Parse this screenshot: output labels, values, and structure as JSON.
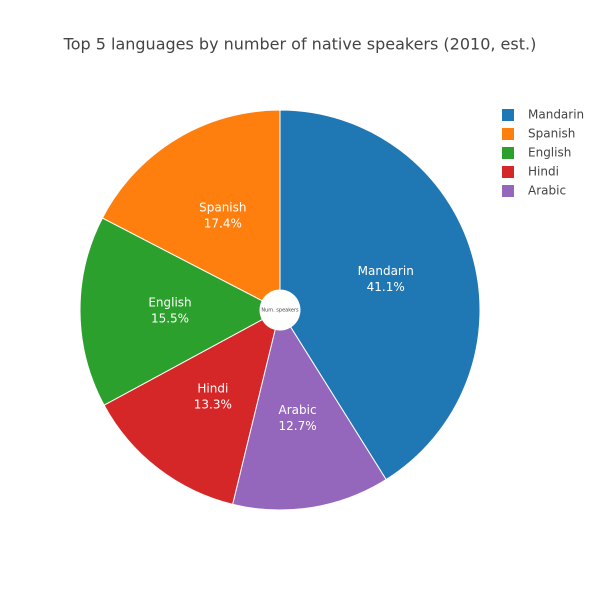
{
  "chart_data": {
    "type": "pie",
    "title": "Top 5 languages by number of native speakers (2010, est.)",
    "categories": [
      "Mandarin",
      "Spanish",
      "English",
      "Hindi",
      "Arabic"
    ],
    "values": [
      41.1,
      17.4,
      15.5,
      13.3,
      12.7
    ],
    "value_labels": [
      "41.1%",
      "17.4%",
      "15.5%",
      "13.3%",
      "12.7%"
    ],
    "colors": [
      "#1f77b4",
      "#ff7f0e",
      "#2ca02c",
      "#d62728",
      "#9467bd"
    ],
    "direction": "counterclockwise",
    "hole_label": "Num. speakers",
    "legend": "top-right"
  }
}
